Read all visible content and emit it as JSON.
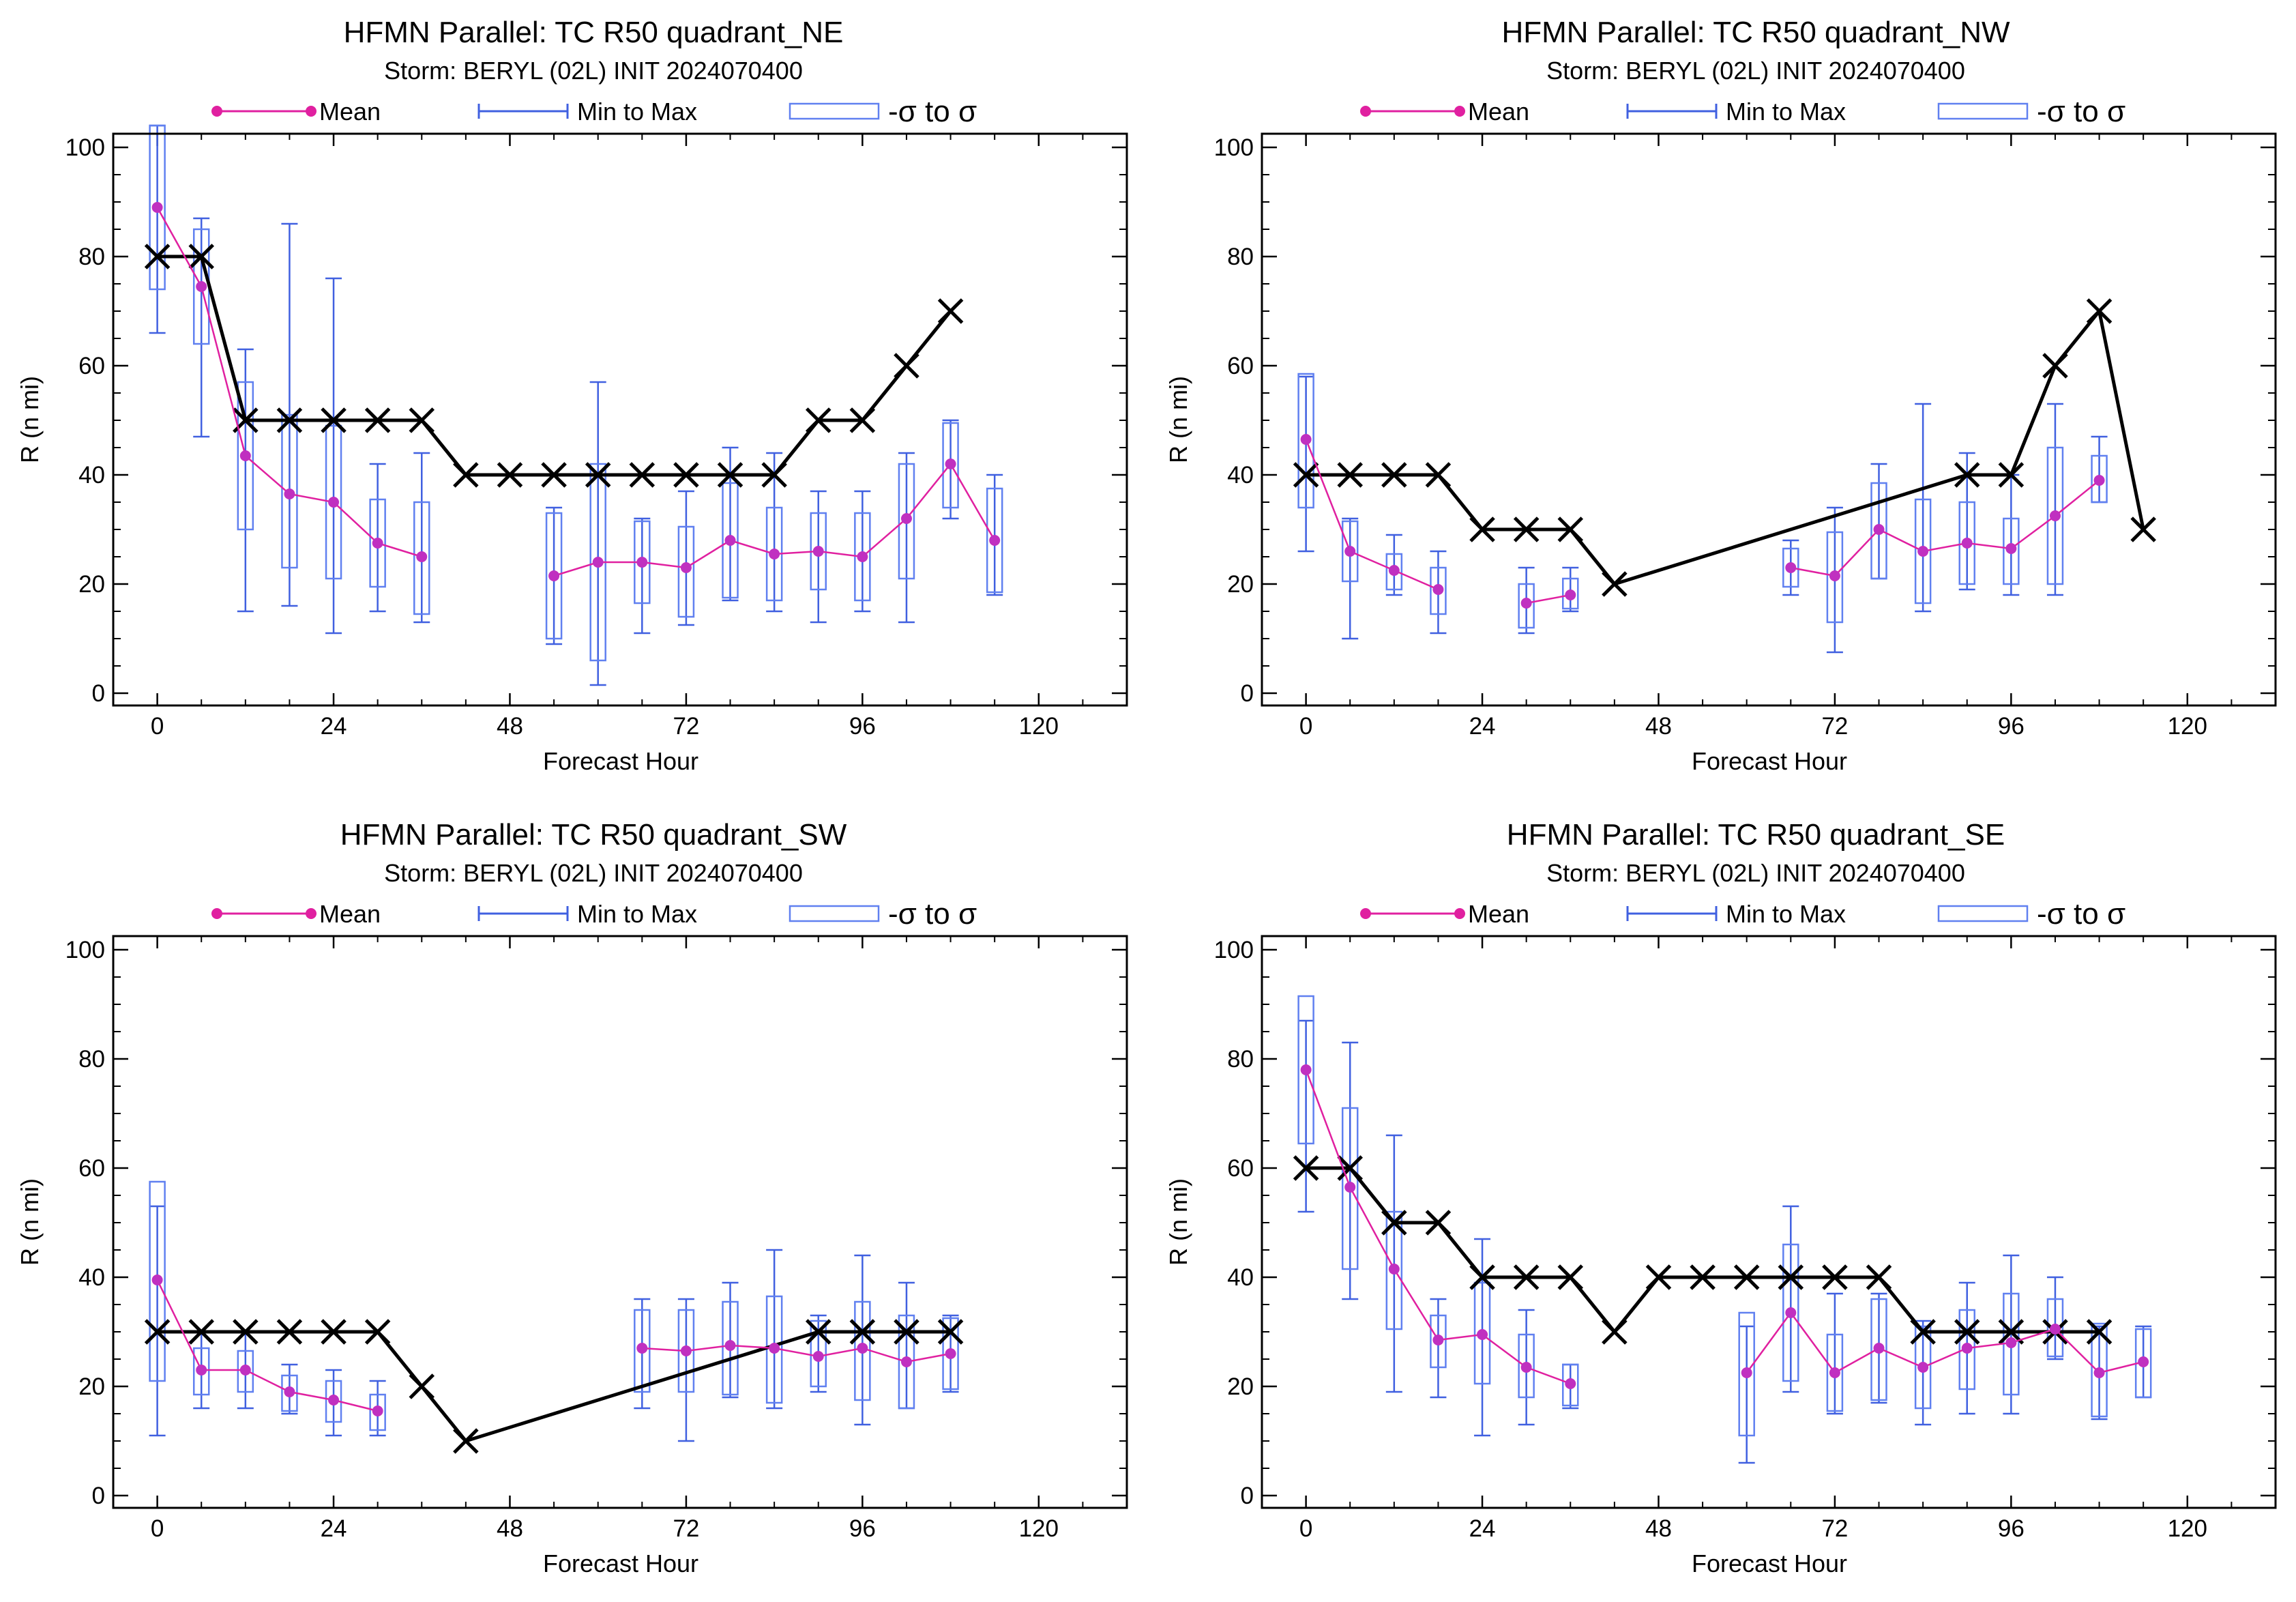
{
  "colors": {
    "mean": "#E020A0",
    "mean_marker": "#C030C0",
    "range": "#4060E0",
    "box": "#6080F0",
    "truth": "#000000",
    "frame": "#000000",
    "background": "#ffffff"
  },
  "legend": {
    "mean": "Mean",
    "range": "Min to Max",
    "sigma": "-σ to σ"
  },
  "chart_data": [
    {
      "type": "box",
      "title": "HFMN Parallel: TC  R50 quadrant_NE",
      "subtitle": "Storm: BERYL (02L) INIT 2024070400",
      "xlabel": "Forecast Hour",
      "ylabel": "R (n mi)",
      "xlim": [
        -6,
        132
      ],
      "ylim": [
        0,
        100
      ],
      "xticks": [
        0,
        24,
        48,
        72,
        96,
        120
      ],
      "yticks": [
        0,
        20,
        40,
        60,
        80,
        100
      ],
      "truth": {
        "x": [
          0,
          6,
          12,
          18,
          24,
          30,
          36,
          42,
          48,
          54,
          60,
          66,
          72,
          78,
          84,
          90,
          96,
          102,
          108
        ],
        "y": [
          80,
          80,
          50,
          50,
          50,
          50,
          50,
          40,
          40,
          40,
          40,
          40,
          40,
          40,
          40,
          50,
          50,
          60,
          70
        ]
      },
      "stats": [
        {
          "x": 0,
          "mean": 89,
          "min": 66,
          "max": 104,
          "lo": 74,
          "hi": 104
        },
        {
          "x": 6,
          "mean": 74.5,
          "min": 47,
          "max": 87,
          "lo": 64,
          "hi": 85
        },
        {
          "x": 12,
          "mean": 43.5,
          "min": 15,
          "max": 63,
          "lo": 30,
          "hi": 57
        },
        {
          "x": 18,
          "mean": 36.5,
          "min": 16,
          "max": 86,
          "lo": 23,
          "hi": 51
        },
        {
          "x": 24,
          "mean": 35,
          "min": 11,
          "max": 76,
          "lo": 21,
          "hi": 49
        },
        {
          "x": 30,
          "mean": 27.5,
          "min": 15,
          "max": 42,
          "lo": 19.5,
          "hi": 35.5
        },
        {
          "x": 36,
          "mean": 25,
          "min": 13,
          "max": 44,
          "lo": 14.5,
          "hi": 35
        },
        {
          "x": 54,
          "mean": 21.5,
          "min": 9,
          "max": 34,
          "lo": 10,
          "hi": 33
        },
        {
          "x": 60,
          "mean": 24,
          "min": 1.5,
          "max": 57,
          "lo": 6,
          "hi": 42
        },
        {
          "x": 66,
          "mean": 24,
          "min": 11,
          "max": 32,
          "lo": 16.5,
          "hi": 31.5
        },
        {
          "x": 72,
          "mean": 23,
          "min": 12.5,
          "max": 37,
          "lo": 14,
          "hi": 30.5
        },
        {
          "x": 78,
          "mean": 28,
          "min": 17,
          "max": 45,
          "lo": 17.5,
          "hi": 38.5
        },
        {
          "x": 84,
          "mean": 25.5,
          "min": 15,
          "max": 44,
          "lo": 17,
          "hi": 34
        },
        {
          "x": 90,
          "mean": 26,
          "min": 13,
          "max": 37,
          "lo": 19,
          "hi": 33
        },
        {
          "x": 96,
          "mean": 25,
          "min": 15,
          "max": 37,
          "lo": 17,
          "hi": 33
        },
        {
          "x": 102,
          "mean": 32,
          "min": 13,
          "max": 44,
          "lo": 21,
          "hi": 42
        },
        {
          "x": 108,
          "mean": 42,
          "min": 32,
          "max": 50,
          "lo": 34,
          "hi": 49.5
        },
        {
          "x": 114,
          "mean": 28,
          "min": 18,
          "max": 40,
          "lo": 18.5,
          "hi": 37.5
        }
      ]
    },
    {
      "type": "box",
      "title": "HFMN Parallel: TC  R50 quadrant_NW",
      "subtitle": "Storm: BERYL (02L) INIT 2024070400",
      "xlabel": "Forecast Hour",
      "ylabel": "R (n mi)",
      "xlim": [
        -6,
        132
      ],
      "ylim": [
        0,
        100
      ],
      "xticks": [
        0,
        24,
        48,
        72,
        96,
        120
      ],
      "yticks": [
        0,
        20,
        40,
        60,
        80,
        100
      ],
      "truth": {
        "x": [
          0,
          6,
          12,
          18,
          24,
          30,
          36,
          42,
          90,
          96,
          102,
          108,
          114
        ],
        "y": [
          40,
          40,
          40,
          40,
          30,
          30,
          30,
          20,
          40,
          40,
          60,
          70,
          30
        ]
      },
      "stats": [
        {
          "x": 0,
          "mean": 46.5,
          "min": 26,
          "max": 58,
          "lo": 34,
          "hi": 58.5
        },
        {
          "x": 6,
          "mean": 26,
          "min": 10,
          "max": 32,
          "lo": 20.5,
          "hi": 31.5
        },
        {
          "x": 12,
          "mean": 22.5,
          "min": 18,
          "max": 29,
          "lo": 19,
          "hi": 25.5
        },
        {
          "x": 18,
          "mean": 19,
          "min": 11,
          "max": 26,
          "lo": 14.5,
          "hi": 23
        },
        {
          "x": 30,
          "mean": 16.5,
          "min": 11,
          "max": 23,
          "lo": 12,
          "hi": 20
        },
        {
          "x": 36,
          "mean": 18,
          "min": 15,
          "max": 23,
          "lo": 15.5,
          "hi": 21
        },
        {
          "x": 66,
          "mean": 23,
          "min": 18,
          "max": 28,
          "lo": 19.5,
          "hi": 26.5
        },
        {
          "x": 72,
          "mean": 21.5,
          "min": 7.5,
          "max": 34,
          "lo": 13,
          "hi": 29.5
        },
        {
          "x": 78,
          "mean": 30,
          "min": 21,
          "max": 42,
          "lo": 21,
          "hi": 38.5
        },
        {
          "x": 84,
          "mean": 26,
          "min": 15,
          "max": 53,
          "lo": 16.5,
          "hi": 35.5
        },
        {
          "x": 90,
          "mean": 27.5,
          "min": 19,
          "max": 44,
          "lo": 20,
          "hi": 35
        },
        {
          "x": 96,
          "mean": 26.5,
          "min": 18,
          "max": 40,
          "lo": 20,
          "hi": 32
        },
        {
          "x": 102,
          "mean": 32.5,
          "min": 18,
          "max": 53,
          "lo": 20,
          "hi": 45
        },
        {
          "x": 108,
          "mean": 39,
          "min": 35,
          "max": 47,
          "lo": 35,
          "hi": 43.5
        }
      ]
    },
    {
      "type": "box",
      "title": "HFMN Parallel: TC  R50 quadrant_SW",
      "subtitle": "Storm: BERYL (02L) INIT 2024070400",
      "xlabel": "Forecast Hour",
      "ylabel": "R (n mi)",
      "xlim": [
        -6,
        132
      ],
      "ylim": [
        0,
        100
      ],
      "xticks": [
        0,
        24,
        48,
        72,
        96,
        120
      ],
      "yticks": [
        0,
        20,
        40,
        60,
        80,
        100
      ],
      "truth": {
        "x": [
          0,
          6,
          12,
          18,
          24,
          30,
          36,
          42,
          90,
          96,
          102,
          108
        ],
        "y": [
          30,
          30,
          30,
          30,
          30,
          30,
          20,
          10,
          30,
          30,
          30,
          30
        ]
      },
      "stats": [
        {
          "x": 0,
          "mean": 39.5,
          "min": 11,
          "max": 53,
          "lo": 21,
          "hi": 57.5
        },
        {
          "x": 6,
          "mean": 23,
          "min": 16,
          "max": 30,
          "lo": 18.5,
          "hi": 27
        },
        {
          "x": 12,
          "mean": 23,
          "min": 16,
          "max": 30,
          "lo": 19,
          "hi": 26.5
        },
        {
          "x": 18,
          "mean": 19,
          "min": 15,
          "max": 24,
          "lo": 15.5,
          "hi": 22
        },
        {
          "x": 24,
          "mean": 17.5,
          "min": 11,
          "max": 23,
          "lo": 13.5,
          "hi": 21
        },
        {
          "x": 30,
          "mean": 15.5,
          "min": 11,
          "max": 21,
          "lo": 12,
          "hi": 18.5
        },
        {
          "x": 66,
          "mean": 27,
          "min": 16,
          "max": 36,
          "lo": 19,
          "hi": 34
        },
        {
          "x": 72,
          "mean": 26.5,
          "min": 10,
          "max": 36,
          "lo": 19,
          "hi": 34
        },
        {
          "x": 78,
          "mean": 27.5,
          "min": 18,
          "max": 39,
          "lo": 18.5,
          "hi": 35.5
        },
        {
          "x": 84,
          "mean": 27,
          "min": 16,
          "max": 45,
          "lo": 17,
          "hi": 36.5
        },
        {
          "x": 90,
          "mean": 25.5,
          "min": 19,
          "max": 33,
          "lo": 20,
          "hi": 32
        },
        {
          "x": 96,
          "mean": 27,
          "min": 13,
          "max": 44,
          "lo": 17.5,
          "hi": 35.5
        },
        {
          "x": 102,
          "mean": 24.5,
          "min": 16,
          "max": 39,
          "lo": 16,
          "hi": 33
        },
        {
          "x": 108,
          "mean": 26,
          "min": 19,
          "max": 33,
          "lo": 19.5,
          "hi": 32.5
        }
      ]
    },
    {
      "type": "box",
      "title": "HFMN Parallel: TC  R50 quadrant_SE",
      "subtitle": "Storm: BERYL (02L) INIT 2024070400",
      "xlabel": "Forecast Hour",
      "ylabel": "R (n mi)",
      "xlim": [
        -6,
        132
      ],
      "ylim": [
        0,
        100
      ],
      "xticks": [
        0,
        24,
        48,
        72,
        96,
        120
      ],
      "yticks": [
        0,
        20,
        40,
        60,
        80,
        100
      ],
      "truth": {
        "x": [
          0,
          6,
          12,
          18,
          24,
          30,
          36,
          42,
          48,
          54,
          60,
          66,
          72,
          78,
          84,
          90,
          96,
          102,
          108
        ],
        "y": [
          60,
          60,
          50,
          50,
          40,
          40,
          40,
          30,
          40,
          40,
          40,
          40,
          40,
          40,
          30,
          30,
          30,
          30,
          30
        ]
      },
      "stats": [
        {
          "x": 0,
          "mean": 78,
          "min": 52,
          "max": 87,
          "lo": 64.5,
          "hi": 91.5
        },
        {
          "x": 6,
          "mean": 56.5,
          "min": 36,
          "max": 83,
          "lo": 41.5,
          "hi": 71
        },
        {
          "x": 12,
          "mean": 41.5,
          "min": 19,
          "max": 66,
          "lo": 30.5,
          "hi": 52
        },
        {
          "x": 18,
          "mean": 28.5,
          "min": 18,
          "max": 36,
          "lo": 23.5,
          "hi": 33
        },
        {
          "x": 24,
          "mean": 29.5,
          "min": 11,
          "max": 47,
          "lo": 20.5,
          "hi": 39
        },
        {
          "x": 30,
          "mean": 23.5,
          "min": 13,
          "max": 34,
          "lo": 18,
          "hi": 29.5
        },
        {
          "x": 36,
          "mean": 20.5,
          "min": 16,
          "max": 24,
          "lo": 16.5,
          "hi": 24
        },
        {
          "x": 60,
          "mean": 22.5,
          "min": 6,
          "max": 31,
          "lo": 11,
          "hi": 33.5
        },
        {
          "x": 66,
          "mean": 33.5,
          "min": 19,
          "max": 53,
          "lo": 21,
          "hi": 46
        },
        {
          "x": 72,
          "mean": 22.5,
          "min": 15,
          "max": 37,
          "lo": 15.5,
          "hi": 29.5
        },
        {
          "x": 78,
          "mean": 27,
          "min": 17,
          "max": 37,
          "lo": 17.5,
          "hi": 36
        },
        {
          "x": 84,
          "mean": 23.5,
          "min": 13,
          "max": 32,
          "lo": 16,
          "hi": 31
        },
        {
          "x": 90,
          "mean": 27,
          "min": 15,
          "max": 39,
          "lo": 19.5,
          "hi": 34
        },
        {
          "x": 96,
          "mean": 28,
          "min": 15,
          "max": 44,
          "lo": 18.5,
          "hi": 37
        },
        {
          "x": 102,
          "mean": 30.5,
          "min": 25,
          "max": 40,
          "lo": 25.5,
          "hi": 36
        },
        {
          "x": 108,
          "mean": 22.5,
          "min": 14,
          "max": 31,
          "lo": 14.5,
          "hi": 31.5
        },
        {
          "x": 114,
          "mean": 24.5,
          "min": 18,
          "max": 31,
          "lo": 18,
          "hi": 30.5
        }
      ]
    }
  ]
}
